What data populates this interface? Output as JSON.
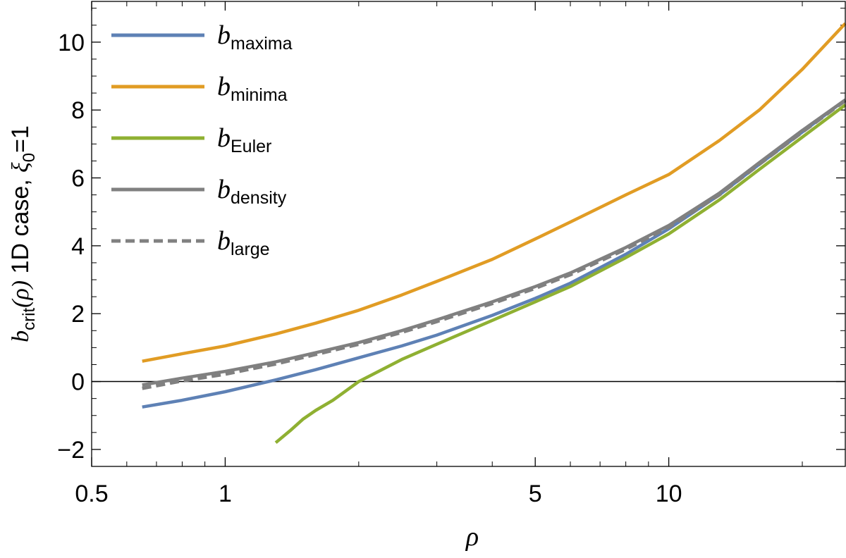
{
  "chart_data": {
    "type": "line",
    "xscale": "log",
    "xlim": [
      0.5,
      25
    ],
    "ylim": [
      -2.5,
      11.2
    ],
    "xlabel": "ρ",
    "ylabel": {
      "var": "b",
      "sub": "crit",
      "arg": "(ρ)",
      "text": " 1D case, ",
      "xi": "ξ",
      "xi_sub": "0",
      "xi_val": "=1"
    },
    "x_ticks": [
      {
        "value": 0.5,
        "label": "0.5"
      },
      {
        "value": 1,
        "label": "1"
      },
      {
        "value": 5,
        "label": "5"
      },
      {
        "value": 10,
        "label": "10"
      }
    ],
    "x_minor_ticks": [
      0.6,
      0.7,
      0.8,
      0.9,
      2,
      3,
      4,
      6,
      7,
      8,
      9,
      20
    ],
    "y_ticks": [
      {
        "value": -2,
        "label": "−2"
      },
      {
        "value": 0,
        "label": "0"
      },
      {
        "value": 2,
        "label": "2"
      },
      {
        "value": 4,
        "label": "4"
      },
      {
        "value": 6,
        "label": "6"
      },
      {
        "value": 8,
        "label": "8"
      },
      {
        "value": 10,
        "label": "10"
      }
    ],
    "y_minor_step": 0.5,
    "zero_line": true,
    "grid": false,
    "legend_position": "top-left",
    "series": [
      {
        "name_base": "b",
        "name_sub": "maxima",
        "color": "#5E81B5",
        "dash": false,
        "x": [
          0.65,
          0.8,
          1.0,
          1.3,
          1.6,
          2.0,
          2.5,
          3.0,
          4.0,
          5.0,
          6.0,
          8.0,
          10.0,
          13.0,
          16.0,
          20.0,
          25.0
        ],
        "y": [
          -0.75,
          -0.55,
          -0.3,
          0.05,
          0.35,
          0.7,
          1.05,
          1.37,
          1.95,
          2.45,
          2.9,
          3.75,
          4.5,
          5.5,
          6.4,
          7.35,
          8.3
        ]
      },
      {
        "name_base": "b",
        "name_sub": "minima",
        "color": "#E19C24",
        "dash": false,
        "x": [
          0.65,
          0.8,
          1.0,
          1.3,
          1.6,
          2.0,
          2.5,
          3.0,
          4.0,
          5.0,
          6.0,
          8.0,
          10.0,
          13.0,
          16.0,
          20.0,
          25.0
        ],
        "y": [
          0.6,
          0.82,
          1.05,
          1.4,
          1.72,
          2.1,
          2.55,
          2.95,
          3.6,
          4.2,
          4.7,
          5.5,
          6.1,
          7.1,
          8.0,
          9.2,
          10.55
        ]
      },
      {
        "name_base": "b",
        "name_sub": "Euler",
        "color": "#8FB032",
        "dash": false,
        "x": [
          1.3,
          1.4,
          1.5,
          1.6,
          1.75,
          2.0,
          2.5,
          3.0,
          4.0,
          5.0,
          6.0,
          8.0,
          10.0,
          13.0,
          16.0,
          20.0,
          25.0
        ],
        "y": [
          -1.8,
          -1.45,
          -1.1,
          -0.85,
          -0.55,
          0.0,
          0.65,
          1.1,
          1.8,
          2.35,
          2.8,
          3.65,
          4.35,
          5.35,
          6.25,
          7.2,
          8.15
        ]
      },
      {
        "name_base": "b",
        "name_sub": "density",
        "color": "#808080",
        "dash": false,
        "x": [
          0.65,
          0.8,
          1.0,
          1.3,
          1.6,
          2.0,
          2.5,
          3.0,
          4.0,
          5.0,
          6.0,
          8.0,
          10.0,
          13.0,
          16.0,
          20.0,
          25.0
        ],
        "y": [
          -0.1,
          0.1,
          0.3,
          0.58,
          0.85,
          1.15,
          1.5,
          1.82,
          2.35,
          2.8,
          3.2,
          3.95,
          4.6,
          5.55,
          6.45,
          7.4,
          8.3
        ]
      },
      {
        "name_base": "b",
        "name_sub": "large",
        "color": "#808080",
        "dash": true,
        "x": [
          0.65,
          0.8,
          1.0,
          1.3,
          1.6,
          2.0,
          2.5,
          3.0,
          4.0,
          5.0,
          6.0,
          8.0,
          10.0,
          13.0,
          16.0,
          20.0,
          25.0
        ],
        "y": [
          -0.2,
          0.02,
          0.22,
          0.52,
          0.8,
          1.1,
          1.45,
          1.77,
          2.3,
          2.75,
          3.15,
          3.9,
          4.55,
          5.5,
          6.4,
          7.35,
          8.28
        ]
      }
    ]
  }
}
